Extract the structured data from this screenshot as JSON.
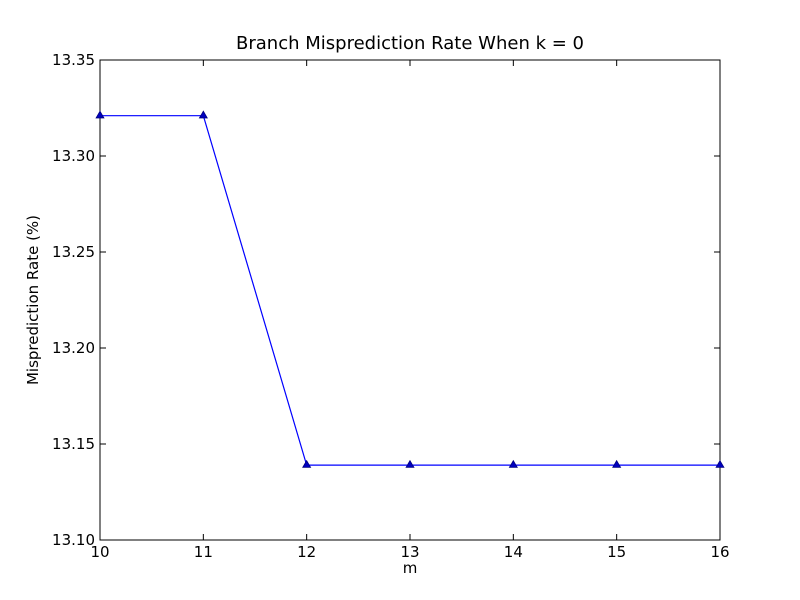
{
  "chart_data": {
    "type": "line",
    "title": "Branch Misprediction Rate When k = 0",
    "xlabel": "m",
    "ylabel": "Misprediction Rate (%)",
    "xlim": [
      10,
      16
    ],
    "ylim": [
      13.1,
      13.35
    ],
    "x_ticks": [
      "10",
      "11",
      "12",
      "13",
      "14",
      "15",
      "16"
    ],
    "y_ticks": [
      "13.10",
      "13.15",
      "13.20",
      "13.25",
      "13.30",
      "13.35"
    ],
    "grid": false,
    "series": [
      {
        "color": "#0000ff",
        "marker": "triangle-up",
        "x": [
          10,
          11,
          12,
          13,
          14,
          15,
          16
        ],
        "y": [
          13.321,
          13.321,
          13.139,
          13.139,
          13.139,
          13.139,
          13.139
        ]
      }
    ]
  }
}
